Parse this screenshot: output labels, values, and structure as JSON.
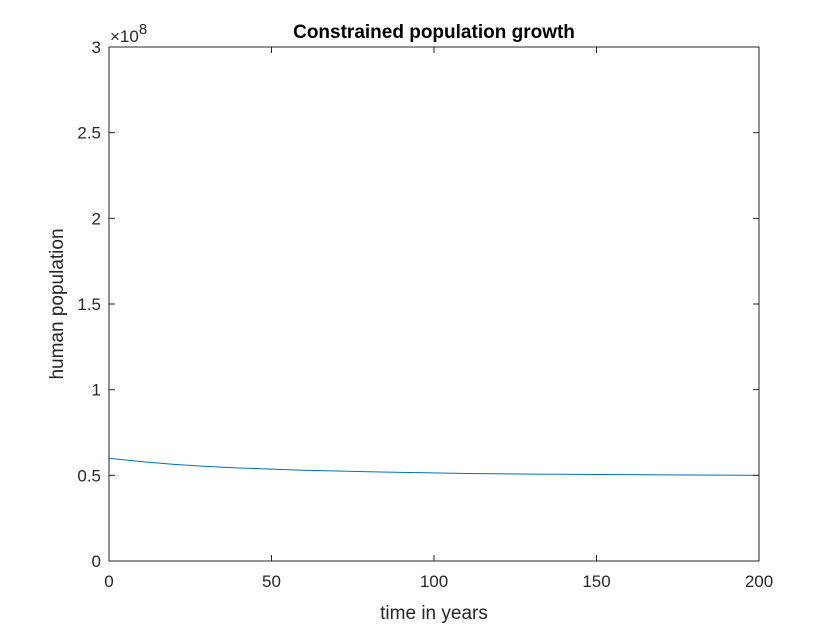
{
  "chart_data": {
    "type": "line",
    "title": "Constrained population growth",
    "xlabel": "time in years",
    "ylabel": "human population",
    "xlim": [
      0,
      200
    ],
    "ylim": [
      0,
      3
    ],
    "y_multiplier": "×10",
    "y_exponent": "8",
    "xticks": [
      "0",
      "50",
      "100",
      "150",
      "200"
    ],
    "yticks": [
      "0",
      "0.5",
      "1",
      "1.5",
      "2",
      "2.5",
      "3"
    ],
    "grid": false,
    "series": [
      {
        "color": "#0072BD",
        "x": [
          0,
          10,
          20,
          30,
          40,
          50,
          60,
          70,
          80,
          90,
          100,
          110,
          120,
          130,
          140,
          150,
          160,
          170,
          180,
          190,
          200
        ],
        "y": [
          0.6,
          0.58,
          0.564,
          0.552,
          0.543,
          0.536,
          0.53,
          0.525,
          0.521,
          0.517,
          0.514,
          0.511,
          0.509,
          0.507,
          0.506,
          0.505,
          0.504,
          0.503,
          0.502,
          0.501,
          0.5
        ]
      }
    ]
  }
}
